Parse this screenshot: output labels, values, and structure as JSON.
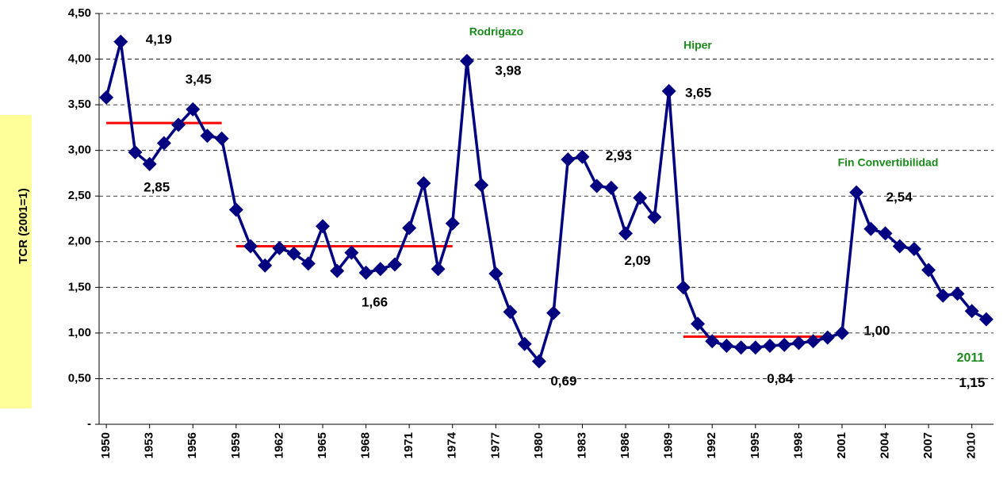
{
  "chart_data": {
    "type": "line",
    "y_label": "TCR (2001=1)",
    "x": [
      1950,
      1951,
      1952,
      1953,
      1954,
      1955,
      1956,
      1957,
      1958,
      1959,
      1960,
      1961,
      1962,
      1963,
      1964,
      1965,
      1966,
      1967,
      1968,
      1969,
      1970,
      1971,
      1972,
      1973,
      1974,
      1975,
      1976,
      1977,
      1978,
      1979,
      1980,
      1981,
      1982,
      1983,
      1984,
      1985,
      1986,
      1987,
      1988,
      1989,
      1990,
      1991,
      1992,
      1993,
      1994,
      1995,
      1996,
      1997,
      1998,
      1999,
      2000,
      2001,
      2002,
      2003,
      2004,
      2005,
      2006,
      2007,
      2008,
      2009,
      2010,
      2011
    ],
    "series": [
      {
        "color": "#000080",
        "values": [
          3.58,
          4.19,
          2.98,
          2.85,
          3.08,
          3.28,
          3.45,
          3.16,
          3.13,
          2.35,
          1.95,
          1.74,
          1.93,
          1.87,
          1.76,
          2.17,
          1.68,
          1.88,
          1.66,
          1.7,
          1.75,
          2.15,
          2.64,
          1.7,
          2.2,
          3.98,
          2.62,
          1.65,
          1.23,
          0.88,
          0.69,
          1.22,
          2.9,
          2.93,
          2.61,
          2.59,
          2.09,
          2.48,
          2.27,
          3.65,
          1.5,
          1.1,
          0.91,
          0.86,
          0.84,
          0.84,
          0.86,
          0.87,
          0.89,
          0.91,
          0.95,
          1.0,
          2.54,
          2.14,
          2.09,
          1.95,
          1.92,
          1.69,
          1.41,
          1.43,
          1.24,
          1.15
        ],
        "value_labels": [
          null,
          "4,19",
          null,
          "2,85",
          null,
          null,
          "3,45",
          null,
          null,
          null,
          null,
          null,
          null,
          null,
          null,
          null,
          null,
          null,
          "1,66",
          null,
          null,
          null,
          null,
          null,
          null,
          "3,98",
          null,
          null,
          null,
          null,
          "0,69",
          null,
          null,
          "2,93",
          null,
          null,
          "2,09",
          null,
          null,
          "3,65",
          null,
          null,
          null,
          null,
          null,
          "0,84",
          null,
          null,
          null,
          null,
          null,
          "1,00",
          "2,54",
          null,
          null,
          null,
          null,
          null,
          null,
          null,
          null,
          "1,15"
        ]
      }
    ],
    "reference_lines": [
      {
        "x": [
          1950,
          1958
        ],
        "value": 3.3
      },
      {
        "x": [
          1959,
          1974
        ],
        "value": 1.95
      },
      {
        "x": [
          1990,
          2000
        ],
        "value": 0.96
      }
    ],
    "reference_color": "#ff0000",
    "annotations": [
      "Rodrigazo",
      "Hiper",
      "Fin Convertibilidad",
      "2011"
    ],
    "annotation_color": "#1a8a1a",
    "xlim": [
      1949.5,
      2011.5
    ],
    "xticks": [
      1950,
      1953,
      1956,
      1959,
      1962,
      1965,
      1968,
      1971,
      1974,
      1977,
      1980,
      1983,
      1986,
      1989,
      1992,
      1995,
      1998,
      2001,
      2004,
      2007,
      2010
    ],
    "ylim": [
      0,
      4.5
    ],
    "yticks": [
      {
        "value": 0,
        "label": "-"
      },
      {
        "value": 0.5,
        "label": "0,50"
      },
      {
        "value": 1,
        "label": "1,00"
      },
      {
        "value": 1.5,
        "label": "1,50"
      },
      {
        "value": 2,
        "label": "2,00"
      },
      {
        "value": 2.5,
        "label": "2,50"
      },
      {
        "value": 3,
        "label": "3,00"
      },
      {
        "value": 3.5,
        "label": "3,50"
      },
      {
        "value": 4,
        "label": "4,00"
      },
      {
        "value": 4.5,
        "label": "4,50"
      }
    ],
    "grid": true
  }
}
